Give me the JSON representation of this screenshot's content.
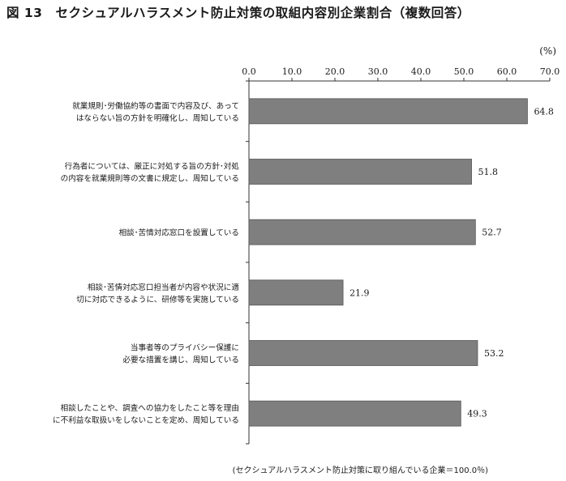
{
  "figure": {
    "title": "図 13　セクシュアルハラスメント防止対策の取組内容別企業割合（複数回答）",
    "unit_label": "(%)",
    "footnote": "(セクシュアルハラスメント防止対策に取り組んでいる企業＝100.0％)"
  },
  "chart_data": {
    "type": "bar",
    "orientation": "horizontal",
    "title": "図 13　セクシュアルハラスメント防止対策の取組内容別企業割合（複数回答）",
    "unit": "(%)",
    "xlim": [
      0,
      70
    ],
    "ticks": [
      "0.0",
      "10.0",
      "20.0",
      "30.0",
      "40.0",
      "50.0",
      "60.0",
      "70.0"
    ],
    "tick_values": [
      0,
      10,
      20,
      30,
      40,
      50,
      60,
      70
    ],
    "categories": [
      [
        "就業規則･労働協約等の書面で内容及び、あって",
        "はならない旨の方針を明確化し、周知している"
      ],
      [
        "行為者については、厳正に対処する旨の方針･対処",
        "の内容を就業規則等の文書に規定し、周知している"
      ],
      [
        "相談･苦情対応窓口を設置している"
      ],
      [
        "相談･苦情対応窓口担当者が内容や状況に適",
        "切に対応できるように、研修等を実施している"
      ],
      [
        "当事者等のプライバシー保護に",
        "必要な措置を講じ、周知している"
      ],
      [
        "相談したことや、調査への協力をしたこと等を理由",
        "に不利益な取扱いをしないことを定め、周知している"
      ]
    ],
    "values": [
      64.8,
      51.8,
      52.7,
      21.9,
      53.2,
      49.3
    ],
    "value_labels": [
      "64.8",
      "51.8",
      "52.7",
      "21.9",
      "53.2",
      "49.3"
    ],
    "bar_color": "#7f7f7f",
    "bar_border": "#555555",
    "grid": false,
    "legend": "none"
  }
}
